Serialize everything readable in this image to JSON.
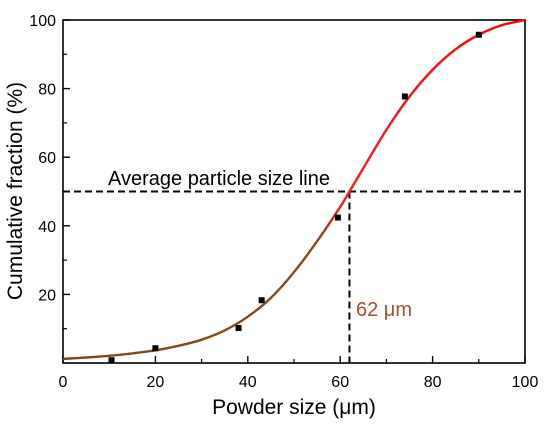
{
  "chart_data": {
    "type": "scatter",
    "title": "",
    "xlabel": "Powder size (μm)",
    "ylabel": "Cumulative fraction (%)",
    "xlim": [
      0,
      100
    ],
    "ylim": [
      0,
      100
    ],
    "x_ticks": [
      "0",
      "20",
      "40",
      "60",
      "80",
      "100"
    ],
    "y_ticks": [
      "20",
      "40",
      "60",
      "80",
      "100"
    ],
    "grid": false,
    "series": [
      {
        "kind": "points",
        "x": [
          10.5,
          20,
          38,
          43,
          59.5,
          74,
          90
        ],
        "y": [
          0.8,
          4.3,
          10.2,
          18.3,
          42.4,
          77.7,
          95.7
        ],
        "color": "#000000"
      },
      {
        "kind": "fit-curve",
        "x": [
          0,
          5,
          10,
          15,
          20,
          25,
          30,
          35,
          40,
          45,
          50,
          55,
          60,
          62,
          65,
          70,
          75,
          80,
          85,
          90,
          95,
          100
        ],
        "y": [
          1.2,
          1.6,
          2.1,
          2.8,
          3.7,
          5.0,
          6.8,
          9.5,
          13.5,
          19,
          26.5,
          35.5,
          45.5,
          50,
          56.8,
          68,
          77.7,
          85.5,
          91.5,
          95.7,
          98.5,
          100
        ],
        "color_start": "#7a4a1a",
        "color_end": "#ff0000"
      }
    ],
    "annotations": {
      "average_line_label": "Average particle size line",
      "average_line_y": 50,
      "median_size_x": 62,
      "median_size_label": "62 μm",
      "median_label_color": "#a0522d"
    }
  }
}
